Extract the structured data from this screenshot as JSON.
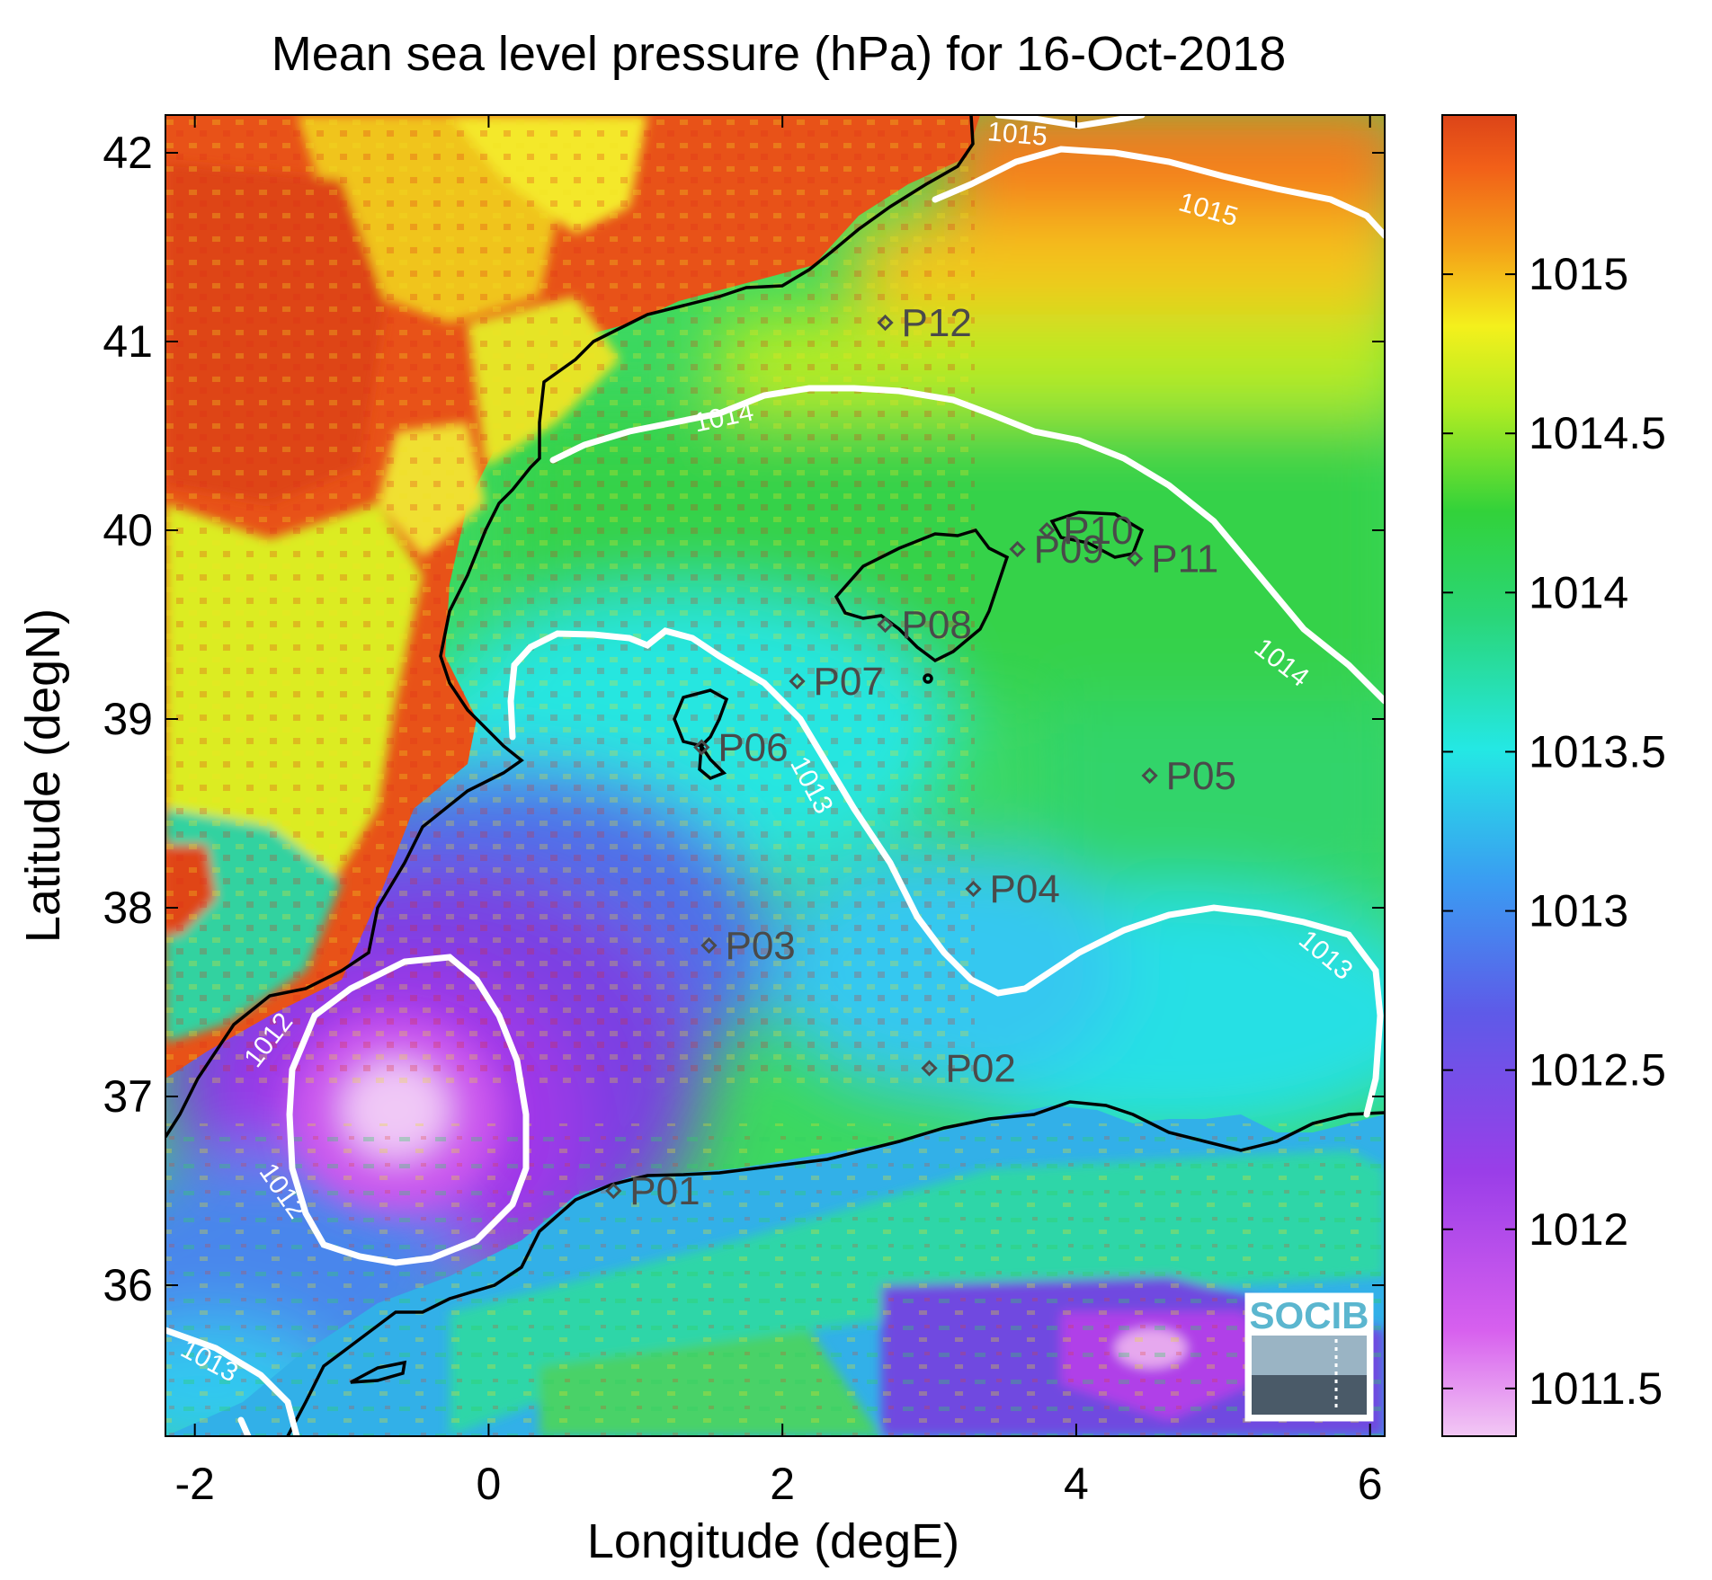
{
  "title": "Mean sea level pressure (hPa) for 16-Oct-2018",
  "axes": {
    "xlabel": "Longitude (degE)",
    "ylabel": "Latitude (degN)",
    "xlim": [
      -2.2,
      6.1
    ],
    "ylim": [
      35.2,
      42.2
    ],
    "xticks": [
      "-2",
      "0",
      "2",
      "4",
      "6"
    ],
    "yticks": [
      "36",
      "37",
      "38",
      "39",
      "40",
      "41",
      "42"
    ]
  },
  "colorbar": {
    "range": [
      1011.35,
      1015.5
    ],
    "ticks": [
      "1011.5",
      "1012",
      "1012.5",
      "1013",
      "1013.5",
      "1014",
      "1014.5",
      "1015"
    ],
    "colors": [
      "#f2b8f0",
      "#cc44ee",
      "#7a3ee0",
      "#3e7cf0",
      "#24e4e0",
      "#2ad86e",
      "#32d23c",
      "#d8f020",
      "#f0b818",
      "#f06018",
      "#d84418"
    ]
  },
  "contours": {
    "color": "#ffffff",
    "labels": [
      {
        "text": "1015",
        "lon": 3.6,
        "lat": 42.1,
        "rot": 5
      },
      {
        "text": "1015",
        "lon": 4.9,
        "lat": 41.7,
        "rot": 16
      },
      {
        "text": "1014",
        "lon": 1.6,
        "lat": 40.6,
        "rot": -12
      },
      {
        "text": "1014",
        "lon": 5.4,
        "lat": 39.3,
        "rot": 38
      },
      {
        "text": "1013",
        "lon": 2.2,
        "lat": 38.65,
        "rot": 62
      },
      {
        "text": "1013",
        "lon": 5.7,
        "lat": 37.75,
        "rot": 40
      },
      {
        "text": "1012",
        "lon": -1.5,
        "lat": 37.3,
        "rot": -52
      },
      {
        "text": "1012",
        "lon": -1.4,
        "lat": 36.5,
        "rot": 55
      },
      {
        "text": "1013",
        "lon": -1.9,
        "lat": 35.6,
        "rot": 28
      }
    ]
  },
  "points": [
    {
      "name": "P01",
      "lon": 0.85,
      "lat": 36.5
    },
    {
      "name": "P02",
      "lon": 3.0,
      "lat": 37.15
    },
    {
      "name": "P03",
      "lon": 1.5,
      "lat": 37.8
    },
    {
      "name": "P04",
      "lon": 3.3,
      "lat": 38.1
    },
    {
      "name": "P05",
      "lon": 4.5,
      "lat": 38.7
    },
    {
      "name": "P06",
      "lon": 1.45,
      "lat": 38.85
    },
    {
      "name": "P07",
      "lon": 2.1,
      "lat": 39.2
    },
    {
      "name": "P08",
      "lon": 2.7,
      "lat": 39.5
    },
    {
      "name": "P09",
      "lon": 3.6,
      "lat": 39.9
    },
    {
      "name": "P10",
      "lon": 3.8,
      "lat": 40.0
    },
    {
      "name": "P11",
      "lon": 4.4,
      "lat": 39.85
    },
    {
      "name": "P12",
      "lon": 2.7,
      "lat": 41.1
    }
  ],
  "logo": {
    "text": "SOCIB",
    "color": "#5bb6cf"
  }
}
